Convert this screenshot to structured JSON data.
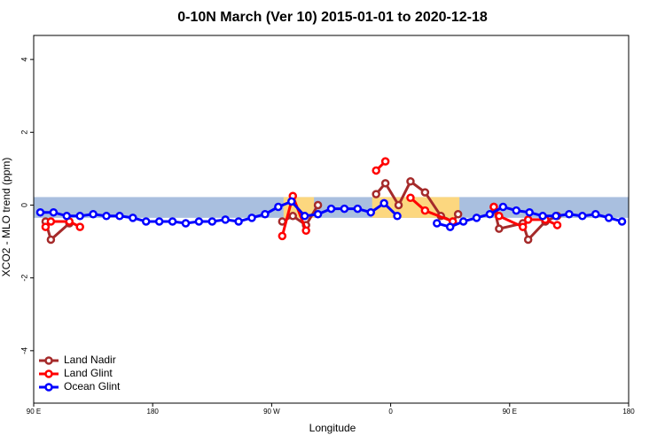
{
  "chart_data": {
    "type": "line",
    "title": "0-10N March (Ver 10)   2015-01-01 to 2020-12-18",
    "x_label": "Longitude",
    "y_label": "XCO2 - MLO trend (ppm)",
    "xlim": [
      90,
      540
    ],
    "ylim": [
      -5.44,
      4.66
    ],
    "xticks": [
      {
        "value": 90,
        "label": "90 E"
      },
      {
        "value": 180,
        "label": "180"
      },
      {
        "value": 270,
        "label": "90 W"
      },
      {
        "value": 360,
        "label": "0"
      },
      {
        "value": 450,
        "label": "90 E"
      },
      {
        "value": 540,
        "label": "180"
      }
    ],
    "yticks": [
      -4,
      -2,
      0,
      2,
      4
    ],
    "band": [
      -0.35,
      0.22
    ],
    "band_color": "#a9bfdf",
    "highlight_ranges": [
      [
        279,
        302
      ],
      [
        346,
        412
      ]
    ],
    "highlight_color": "#fcd77f",
    "legend": "bottom-left",
    "series": [
      {
        "name": "Land Nadir",
        "color": "#a52a2a",
        "x": [
          99,
          103,
          117,
          null,
          278,
          286,
          296,
          305,
          null,
          349,
          356,
          366,
          375,
          386,
          398,
          407,
          411,
          null,
          438,
          442,
          460,
          464,
          477,
          486
        ],
        "values": [
          -0.45,
          -0.95,
          -0.5,
          null,
          -0.45,
          -0.3,
          -0.55,
          0.0,
          null,
          0.3,
          0.6,
          0.0,
          0.65,
          0.35,
          -0.3,
          -0.45,
          -0.25,
          null,
          -0.05,
          -0.65,
          -0.5,
          -0.95,
          -0.45,
          -0.3
        ]
      },
      {
        "name": "Land Glint",
        "color": "#ff0000",
        "x": [
          99,
          103,
          117,
          125,
          null,
          278,
          286,
          296,
          null,
          349,
          356,
          null,
          375,
          386,
          407,
          null,
          438,
          442,
          460,
          464,
          477,
          486
        ],
        "values": [
          -0.6,
          -0.45,
          -0.45,
          -0.6,
          null,
          -0.85,
          0.25,
          -0.7,
          null,
          0.95,
          1.2,
          null,
          0.2,
          -0.15,
          -0.45,
          null,
          -0.05,
          -0.3,
          -0.6,
          -0.4,
          -0.4,
          -0.55
        ]
      },
      {
        "name": "Ocean Glint",
        "color": "#0000ff",
        "x": [
          95,
          105,
          115,
          125,
          135,
          145,
          155,
          165,
          175,
          185,
          195,
          205,
          215,
          225,
          235,
          245,
          255,
          265,
          275,
          285,
          295,
          305,
          315,
          325,
          335,
          345,
          355,
          365,
          null,
          395,
          405,
          415,
          425,
          435,
          445,
          455,
          465,
          475,
          485,
          495,
          505,
          515,
          525,
          535
        ],
        "values": [
          -0.2,
          -0.2,
          -0.3,
          -0.3,
          -0.25,
          -0.3,
          -0.3,
          -0.35,
          -0.45,
          -0.45,
          -0.45,
          -0.5,
          -0.45,
          -0.45,
          -0.4,
          -0.45,
          -0.35,
          -0.25,
          -0.05,
          0.1,
          -0.3,
          -0.25,
          -0.1,
          -0.1,
          -0.1,
          -0.2,
          0.05,
          -0.3,
          null,
          -0.5,
          -0.6,
          -0.45,
          -0.35,
          -0.25,
          -0.05,
          -0.15,
          -0.2,
          -0.3,
          -0.3,
          -0.25,
          -0.3,
          -0.25,
          -0.35,
          -0.45
        ]
      }
    ]
  }
}
